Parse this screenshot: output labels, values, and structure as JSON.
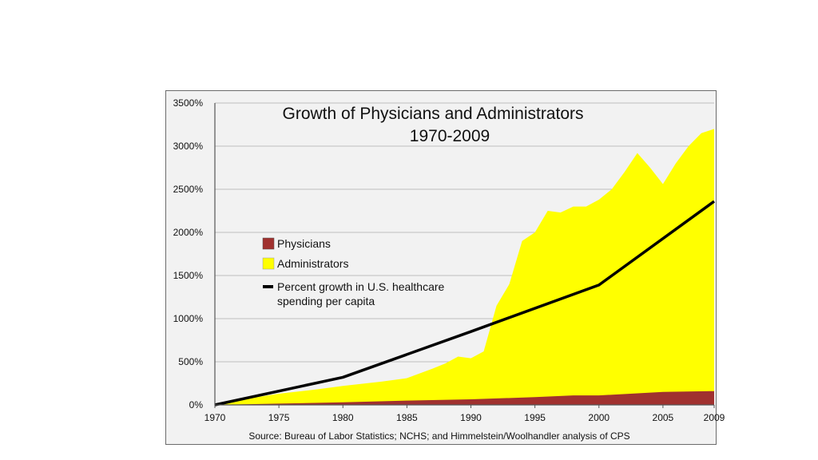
{
  "chart_data": {
    "type": "area",
    "title": "Growth of Physicians and Administrators",
    "subtitle": "1970-2009",
    "xlabel": "",
    "ylabel": "",
    "xlim": [
      1970,
      2009
    ],
    "ylim": [
      0,
      3500
    ],
    "x_ticks": [
      1970,
      1975,
      1980,
      1985,
      1990,
      1995,
      2000,
      2005,
      2009
    ],
    "x_tick_labels": [
      "1970",
      "1975",
      "1980",
      "1985",
      "1990",
      "1995",
      "2000",
      "2005",
      "2009"
    ],
    "y_ticks": [
      0,
      500,
      1000,
      1500,
      2000,
      2500,
      3000,
      3500
    ],
    "y_tick_labels": [
      "0%",
      "500%",
      "1000%",
      "1500%",
      "2000%",
      "2500%",
      "3000%",
      "3500%"
    ],
    "grid": true,
    "series": [
      {
        "name": "Administrators",
        "kind": "area",
        "color": "#ffff00",
        "x": [
          1970,
          1972,
          1975,
          1978,
          1980,
          1983,
          1985,
          1987,
          1988,
          1989,
          1990,
          1991,
          1992,
          1993,
          1994,
          1995,
          1996,
          1997,
          1998,
          1999,
          2000,
          2001,
          2002,
          2003,
          2004,
          2005,
          2006,
          2007,
          2008,
          2009
        ],
        "values": [
          0,
          60,
          130,
          180,
          220,
          270,
          310,
          420,
          480,
          560,
          540,
          620,
          1150,
          1400,
          1900,
          2000,
          2250,
          2230,
          2300,
          2300,
          2380,
          2500,
          2700,
          2920,
          2750,
          2560,
          2800,
          3000,
          3150,
          3200
        ]
      },
      {
        "name": "Physicians",
        "kind": "area",
        "color": "#a0312f",
        "x": [
          1970,
          1975,
          1980,
          1985,
          1990,
          1995,
          1998,
          2000,
          2005,
          2009
        ],
        "values": [
          0,
          15,
          30,
          50,
          65,
          90,
          110,
          110,
          150,
          160
        ]
      },
      {
        "name": "Percent growth in U.S. healthcare spending per capita",
        "kind": "line",
        "color": "#000000",
        "x": [
          1970,
          1980,
          1990,
          2000,
          2009
        ],
        "values": [
          0,
          320,
          850,
          1390,
          2360
        ]
      }
    ],
    "legend": {
      "placement": "upper-left",
      "entries": [
        {
          "label": "Physicians",
          "swatch": "square",
          "color": "#a0312f"
        },
        {
          "label": "Administrators",
          "swatch": "square",
          "color": "#ffff00"
        },
        {
          "label_lines": [
            "Percent growth in U.S. healthcare",
            "spending per capita"
          ],
          "swatch": "line",
          "color": "#000000"
        }
      ]
    },
    "source": "Source: Bureau of Labor Statistics; NCHS; and Himmelstein/Woolhandler analysis of CPS"
  },
  "colors": {
    "frame_background": "#f2f2f2",
    "gridline": "#bdbdbd",
    "axis": "#555555"
  }
}
